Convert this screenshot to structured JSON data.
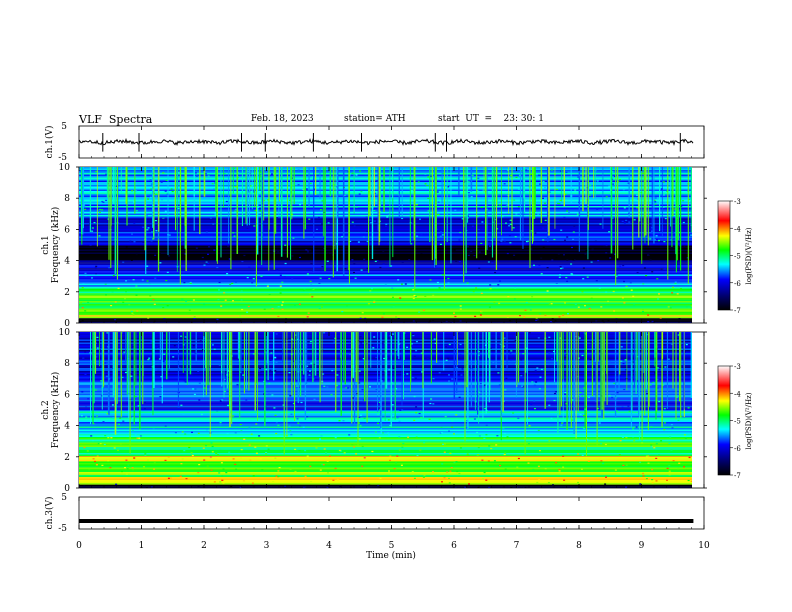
{
  "header": {
    "title": "VLF  Spectra",
    "date": "Feb. 18, 2023",
    "station": "station= ATH",
    "start_time": "start  UT  =    23: 30: 1"
  },
  "chart_data": [
    {
      "type": "line",
      "name": "ch1-waveform",
      "ylabel": "ch.1(V)",
      "ylim": [
        -5,
        5
      ],
      "yticks": [
        "5",
        "-5"
      ],
      "xlim": [
        0,
        10
      ],
      "baseline": 0,
      "amplitude": 0.6,
      "spike_times_min": [
        0.38,
        0.96,
        2.6,
        2.98,
        3.75,
        4.52,
        5.7,
        5.88,
        9.62
      ]
    },
    {
      "type": "heatmap",
      "name": "ch1-spectrogram",
      "ylabel_line1": "ch.1",
      "ylabel_line2": "Frequency  (kHz)",
      "ylim": [
        0,
        10
      ],
      "yticks": [
        "0",
        "2",
        "4",
        "6",
        "8",
        "10"
      ],
      "xlim": [
        0,
        9.83
      ],
      "colorbar": {
        "label": "log(PSD)(V²/Hz)",
        "range": [
          -7,
          -3
        ],
        "ticks": [
          "-3",
          "-4",
          "-5",
          "-6",
          "-7"
        ],
        "colors": [
          "#ffffff",
          "#ff0000",
          "#ffff00",
          "#00ff00",
          "#00ffff",
          "#0000ff",
          "#000033",
          "#000000"
        ]
      },
      "bands_khz": [
        {
          "f0": 0.0,
          "f1": 0.35,
          "level": -7.0
        },
        {
          "f0": 0.35,
          "f1": 0.6,
          "level": -4.6
        },
        {
          "f0": 0.6,
          "f1": 0.8,
          "level": -5.2
        },
        {
          "f0": 0.8,
          "f1": 1.6,
          "level": -5.1
        },
        {
          "f0": 1.6,
          "f1": 2.0,
          "level": -4.9
        },
        {
          "f0": 2.0,
          "f1": 2.4,
          "level": -5.4
        },
        {
          "f0": 2.4,
          "f1": 3.2,
          "level": -5.9
        },
        {
          "f0": 3.2,
          "f1": 4.0,
          "level": -6.3
        },
        {
          "f0": 4.0,
          "f1": 5.0,
          "level": -6.9
        },
        {
          "f0": 5.0,
          "f1": 6.8,
          "level": -6.1
        },
        {
          "f0": 6.8,
          "f1": 10.0,
          "level": -5.8
        }
      ]
    },
    {
      "type": "heatmap",
      "name": "ch2-spectrogram",
      "ylabel_line1": "ch.2",
      "ylabel_line2": "Frequency  (kHz)",
      "ylim": [
        0,
        10
      ],
      "yticks": [
        "0",
        "2",
        "4",
        "6",
        "8",
        "10"
      ],
      "xlim": [
        0,
        9.83
      ],
      "colorbar": {
        "label": "log(PSD)(V²/Hz)",
        "range": [
          -7,
          -3
        ],
        "ticks": [
          "-3",
          "-4",
          "-5",
          "-6",
          "-7"
        ],
        "colors": [
          "#ffffff",
          "#ff0000",
          "#ffff00",
          "#00ff00",
          "#00ffff",
          "#0000ff",
          "#000033",
          "#000000"
        ]
      },
      "bands_khz": [
        {
          "f0": 0.0,
          "f1": 0.3,
          "level": -7.0
        },
        {
          "f0": 0.3,
          "f1": 0.8,
          "level": -4.8
        },
        {
          "f0": 0.8,
          "f1": 1.8,
          "level": -5.0
        },
        {
          "f0": 1.8,
          "f1": 2.1,
          "level": -4.4
        },
        {
          "f0": 2.1,
          "f1": 3.3,
          "level": -5.2
        },
        {
          "f0": 3.3,
          "f1": 5.0,
          "level": -5.7
        },
        {
          "f0": 5.0,
          "f1": 7.0,
          "level": -6.0
        },
        {
          "f0": 7.0,
          "f1": 10.0,
          "level": -6.2
        }
      ]
    },
    {
      "type": "line",
      "name": "ch3-waveform",
      "ylabel": "ch.3(V)",
      "ylim": [
        -5,
        5
      ],
      "yticks": [
        "5",
        "-5"
      ],
      "xlim": [
        0,
        10
      ],
      "baseline": -2.5,
      "amplitude": 0.05
    }
  ],
  "x_axis": {
    "label": "Time  (min)",
    "ticks": [
      "0",
      "1",
      "2",
      "3",
      "4",
      "5",
      "6",
      "7",
      "8",
      "9",
      "10"
    ],
    "range": [
      0,
      10
    ]
  }
}
